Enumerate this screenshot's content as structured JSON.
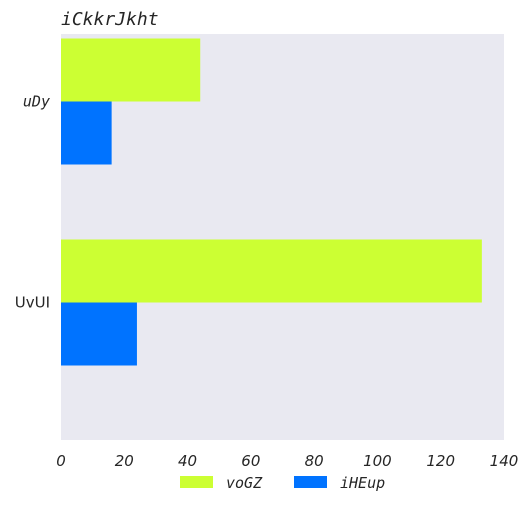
{
  "chart_data": {
    "type": "bar",
    "orientation": "horizontal",
    "title": "iCkkrJkht",
    "xlabel": "",
    "ylabel": "",
    "categories": [
      "uDy",
      "UvUI"
    ],
    "series": [
      {
        "name": "voGZ",
        "values": [
          44,
          133
        ],
        "color": "#ccff33"
      },
      {
        "name": "iHEup",
        "values": [
          16,
          24
        ],
        "color": "#0073ff"
      }
    ],
    "xlim": [
      0,
      140
    ],
    "xticks": [
      0,
      20,
      40,
      60,
      80,
      100,
      120,
      140
    ],
    "grid": false,
    "plot_background": "#e9e9f1",
    "legend_position": "bottom-center"
  }
}
